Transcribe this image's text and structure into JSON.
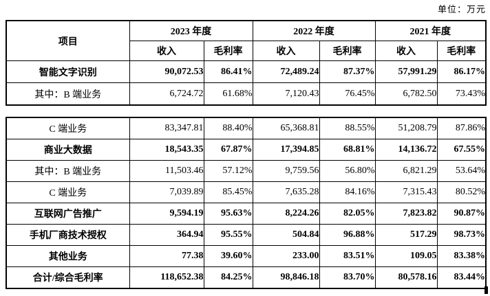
{
  "unit_label": "单位：万元",
  "header": {
    "item": "项目",
    "year_groups": [
      {
        "label": "2023 年度"
      },
      {
        "label": "2022 年度"
      },
      {
        "label": "2021 年度"
      }
    ],
    "sub_columns": [
      "收入",
      "毛利率",
      "收入",
      "毛利率",
      "收入",
      "毛利率"
    ]
  },
  "tables": [
    {
      "rows": [
        {
          "label": "智能文字识别",
          "bold": true,
          "values": [
            "90,072.53",
            "86.41%",
            "72,489.24",
            "87.37%",
            "57,991.29",
            "86.17%"
          ]
        },
        {
          "label": "其中：B 端业务",
          "bold": false,
          "values": [
            "6,724.72",
            "61.68%",
            "7,120.43",
            "76.45%",
            "6,782.50",
            "73.43%"
          ]
        }
      ]
    },
    {
      "rows": [
        {
          "label": "C 端业务",
          "bold": false,
          "values": [
            "83,347.81",
            "88.40%",
            "65,368.81",
            "88.55%",
            "51,208.79",
            "87.86%"
          ]
        },
        {
          "label": "商业大数据",
          "bold": true,
          "values": [
            "18,543.35",
            "67.87%",
            "17,394.85",
            "68.81%",
            "14,136.72",
            "67.55%"
          ]
        },
        {
          "label": "其中：B 端业务",
          "bold": false,
          "values": [
            "11,503.46",
            "57.12%",
            "9,759.56",
            "56.80%",
            "6,821.29",
            "53.64%"
          ]
        },
        {
          "label": "C 端业务",
          "bold": false,
          "values": [
            "7,039.89",
            "85.45%",
            "7,635.28",
            "84.16%",
            "7,315.43",
            "80.52%"
          ]
        },
        {
          "label": "互联网广告推广",
          "bold": true,
          "values": [
            "9,594.19",
            "95.63%",
            "8,224.26",
            "82.05%",
            "7,823.82",
            "90.87%"
          ]
        },
        {
          "label": "手机厂商技术授权",
          "bold": true,
          "values": [
            "364.94",
            "95.55%",
            "504.84",
            "96.88%",
            "517.29",
            "98.73%"
          ]
        },
        {
          "label": "其他业务",
          "bold": true,
          "values": [
            "77.38",
            "39.60%",
            "233.00",
            "83.51%",
            "109.05",
            "83.38%"
          ]
        },
        {
          "label": "合计/综合毛利率",
          "bold": true,
          "values": [
            "118,652.38",
            "84.25%",
            "98,846.18",
            "83.70%",
            "80,578.16",
            "83.44%"
          ]
        }
      ]
    }
  ]
}
